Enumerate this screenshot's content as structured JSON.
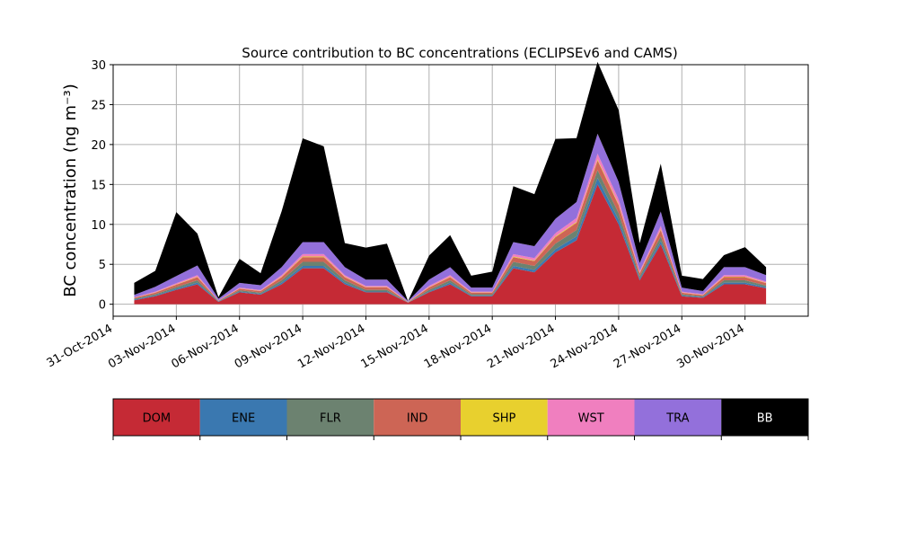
{
  "chart_data": {
    "type": "area",
    "stacked": true,
    "title": "Source contribution to BC concentrations (ECLIPSEv6 and CAMS)",
    "ylabel": "BC concentration (ng m⁻³)",
    "xlabel": "",
    "xlim": [
      "2014-10-31",
      "2014-12-03"
    ],
    "ylim": [
      -1.5,
      30
    ],
    "grid": true,
    "x_ticks": [
      "2014-10-31",
      "2014-11-03",
      "2014-11-06",
      "2014-11-09",
      "2014-11-12",
      "2014-11-15",
      "2014-11-18",
      "2014-11-21",
      "2014-11-24",
      "2014-11-27",
      "2014-11-30"
    ],
    "x_tick_labels": [
      "31-Oct-2014",
      "03-Nov-2014",
      "06-Nov-2014",
      "09-Nov-2014",
      "12-Nov-2014",
      "15-Nov-2014",
      "18-Nov-2014",
      "21-Nov-2014",
      "24-Nov-2014",
      "27-Nov-2014",
      "30-Nov-2014"
    ],
    "y_ticks": [
      0,
      5,
      10,
      15,
      20,
      25,
      30
    ],
    "y_tick_labels": [
      "0",
      "5",
      "10",
      "15",
      "20",
      "25",
      "30"
    ],
    "x": [
      "2014-11-01",
      "2014-11-02",
      "2014-11-03",
      "2014-11-04",
      "2014-11-05",
      "2014-11-06",
      "2014-11-07",
      "2014-11-08",
      "2014-11-09",
      "2014-11-10",
      "2014-11-11",
      "2014-11-12",
      "2014-11-13",
      "2014-11-14",
      "2014-11-15",
      "2014-11-16",
      "2014-11-17",
      "2014-11-18",
      "2014-11-19",
      "2014-11-20",
      "2014-11-21",
      "2014-11-22",
      "2014-11-23",
      "2014-11-24",
      "2014-11-25",
      "2014-11-26",
      "2014-11-27",
      "2014-11-28",
      "2014-11-29",
      "2014-11-30",
      "2014-12-01"
    ],
    "series": [
      {
        "name": "DOM",
        "color": "#c52a35",
        "values": [
          0.5,
          1.0,
          1.8,
          2.5,
          0.3,
          1.5,
          1.2,
          2.5,
          4.5,
          4.5,
          2.5,
          1.5,
          1.5,
          0.2,
          1.5,
          2.5,
          1.0,
          1.0,
          4.5,
          4.0,
          6.5,
          8.0,
          15.0,
          10.0,
          3.0,
          7.5,
          1.0,
          0.8,
          2.5,
          2.5,
          2.0
        ]
      },
      {
        "name": "ENE",
        "color": "#3a78b0",
        "values": [
          0.1,
          0.1,
          0.15,
          0.2,
          0.05,
          0.1,
          0.1,
          0.2,
          0.3,
          0.3,
          0.2,
          0.1,
          0.1,
          0.02,
          0.1,
          0.2,
          0.1,
          0.1,
          0.3,
          0.3,
          0.4,
          0.5,
          0.8,
          0.6,
          0.2,
          0.4,
          0.1,
          0.1,
          0.2,
          0.2,
          0.15
        ]
      },
      {
        "name": "FLR",
        "color": "#6c8270",
        "values": [
          0.1,
          0.15,
          0.2,
          0.3,
          0.05,
          0.15,
          0.15,
          0.3,
          0.5,
          0.5,
          0.3,
          0.2,
          0.2,
          0.02,
          0.2,
          0.3,
          0.15,
          0.15,
          0.5,
          0.5,
          0.7,
          0.8,
          1.0,
          0.8,
          0.3,
          0.6,
          0.15,
          0.1,
          0.3,
          0.3,
          0.2
        ]
      },
      {
        "name": "IND",
        "color": "#cd6555",
        "values": [
          0.1,
          0.2,
          0.3,
          0.4,
          0.05,
          0.2,
          0.2,
          0.4,
          0.6,
          0.6,
          0.4,
          0.3,
          0.3,
          0.03,
          0.3,
          0.4,
          0.2,
          0.2,
          0.6,
          0.6,
          0.8,
          0.9,
          1.2,
          1.0,
          0.4,
          0.8,
          0.2,
          0.15,
          0.4,
          0.4,
          0.3
        ]
      },
      {
        "name": "SHP",
        "color": "#e8d02e",
        "values": [
          0.02,
          0.03,
          0.04,
          0.05,
          0.01,
          0.03,
          0.03,
          0.05,
          0.08,
          0.08,
          0.05,
          0.04,
          0.04,
          0.01,
          0.04,
          0.05,
          0.03,
          0.03,
          0.08,
          0.08,
          0.1,
          0.1,
          0.15,
          0.12,
          0.05,
          0.1,
          0.03,
          0.02,
          0.05,
          0.05,
          0.04
        ]
      },
      {
        "name": "WST",
        "color": "#f07fbf",
        "values": [
          0.05,
          0.1,
          0.15,
          0.2,
          0.03,
          0.1,
          0.1,
          0.2,
          0.3,
          0.3,
          0.2,
          0.15,
          0.15,
          0.02,
          0.15,
          0.2,
          0.1,
          0.1,
          0.3,
          0.3,
          0.4,
          0.5,
          0.7,
          0.6,
          0.2,
          0.4,
          0.1,
          0.08,
          0.2,
          0.2,
          0.15
        ]
      },
      {
        "name": "TRA",
        "color": "#9370db",
        "values": [
          0.3,
          0.6,
          0.9,
          1.2,
          0.2,
          0.6,
          0.6,
          1.0,
          1.5,
          1.5,
          1.0,
          0.8,
          0.8,
          0.1,
          0.8,
          1.0,
          0.5,
          0.5,
          1.5,
          1.5,
          1.8,
          2.0,
          2.5,
          2.2,
          1.0,
          1.8,
          0.5,
          0.4,
          1.0,
          1.0,
          0.8
        ]
      },
      {
        "name": "BB",
        "color": "#000000",
        "values": [
          1.5,
          2.0,
          8.0,
          4.0,
          0.2,
          3.0,
          1.5,
          7.0,
          13.0,
          12.0,
          3.0,
          4.0,
          4.5,
          0.0,
          3.0,
          4.0,
          1.5,
          2.0,
          7.0,
          6.5,
          10.0,
          8.0,
          9.0,
          9.0,
          2.5,
          6.0,
          1.5,
          1.5,
          1.5,
          2.5,
          1.0
        ]
      }
    ]
  },
  "legend": {
    "items": [
      {
        "label": "DOM",
        "color": "#c52a35",
        "text_color": "#000000"
      },
      {
        "label": "ENE",
        "color": "#3a78b0",
        "text_color": "#000000"
      },
      {
        "label": "FLR",
        "color": "#6c8270",
        "text_color": "#000000"
      },
      {
        "label": "IND",
        "color": "#cd6555",
        "text_color": "#000000"
      },
      {
        "label": "SHP",
        "color": "#e8d02e",
        "text_color": "#000000"
      },
      {
        "label": "WST",
        "color": "#f07fbf",
        "text_color": "#000000"
      },
      {
        "label": "TRA",
        "color": "#9370db",
        "text_color": "#000000"
      },
      {
        "label": "BB",
        "color": "#000000",
        "text_color": "#ffffff"
      }
    ]
  }
}
